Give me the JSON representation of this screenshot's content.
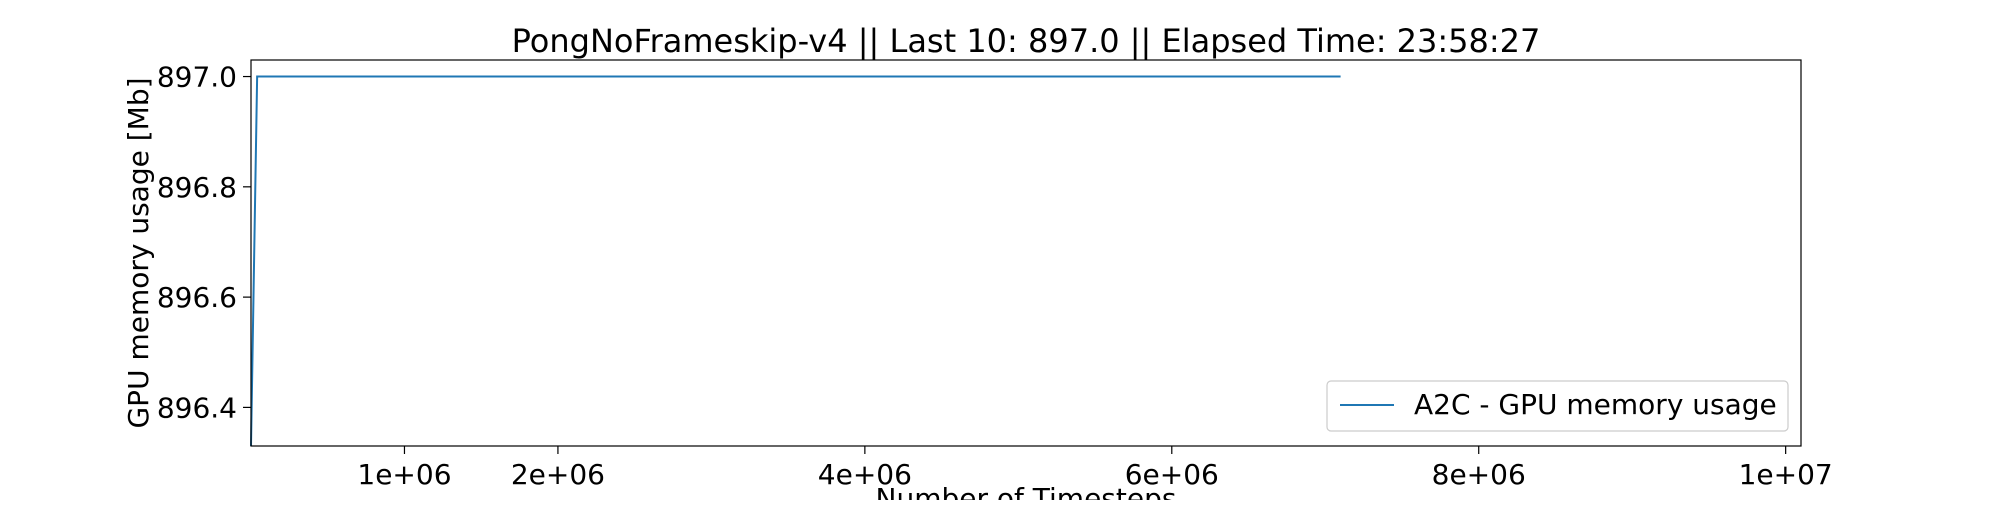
{
  "chart_data": {
    "type": "line",
    "title": "PongNoFrameskip-v4 || Last 10: 897.0 || Elapsed Time: 23:58:27",
    "xlabel": "Number of Timesteps",
    "ylabel": "GPU memory usage [Mb]",
    "xlim": [
      0,
      10100000
    ],
    "ylim": [
      896.33,
      897.03
    ],
    "xticks": [
      {
        "value": 1000000,
        "label": "1e+06"
      },
      {
        "value": 2000000,
        "label": "2e+06"
      },
      {
        "value": 4000000,
        "label": "4e+06"
      },
      {
        "value": 6000000,
        "label": "6e+06"
      },
      {
        "value": 8000000,
        "label": "8e+06"
      },
      {
        "value": 10000000,
        "label": "1e+07"
      }
    ],
    "yticks": [
      {
        "value": 896.4,
        "label": "896.4"
      },
      {
        "value": 896.6,
        "label": "896.6"
      },
      {
        "value": 896.8,
        "label": "896.8"
      },
      {
        "value": 897.0,
        "label": "897.0"
      }
    ],
    "grid": false,
    "legend": {
      "position": "bottom-right"
    },
    "series": [
      {
        "name": "A2C - GPU memory usage",
        "color": "#1f77b4",
        "x": [
          0,
          40000,
          7100000
        ],
        "y": [
          896.33,
          897.0,
          897.0
        ]
      }
    ]
  }
}
